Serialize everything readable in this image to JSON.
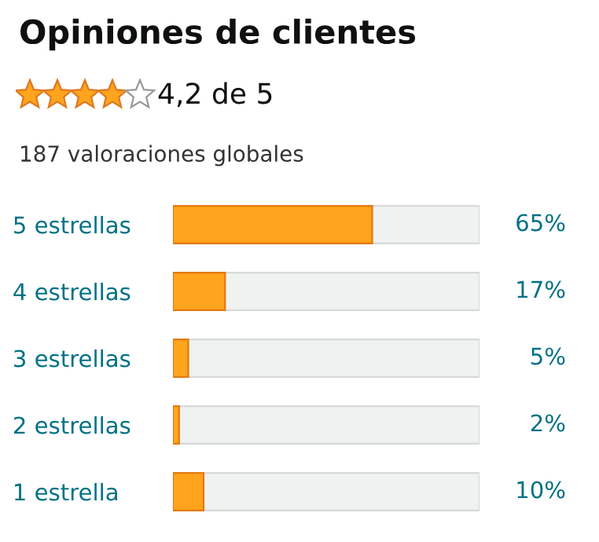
{
  "chart_data": {
    "type": "bar",
    "orientation": "horizontal",
    "title": "Opiniones de clientes",
    "subtitle": "4,2 de 5",
    "annotations": [
      "187 valoraciones globales"
    ],
    "categories": [
      "5 estrellas",
      "4 estrellas",
      "3 estrellas",
      "2 estrellas",
      "1 estrella"
    ],
    "values": [
      65,
      17,
      5,
      2,
      10
    ],
    "value_labels": [
      "65%",
      "17%",
      "5%",
      "2%",
      "10%"
    ],
    "color": "#ffa41c",
    "xlim": [
      0,
      100
    ],
    "tick_labels": "y"
  }
}
